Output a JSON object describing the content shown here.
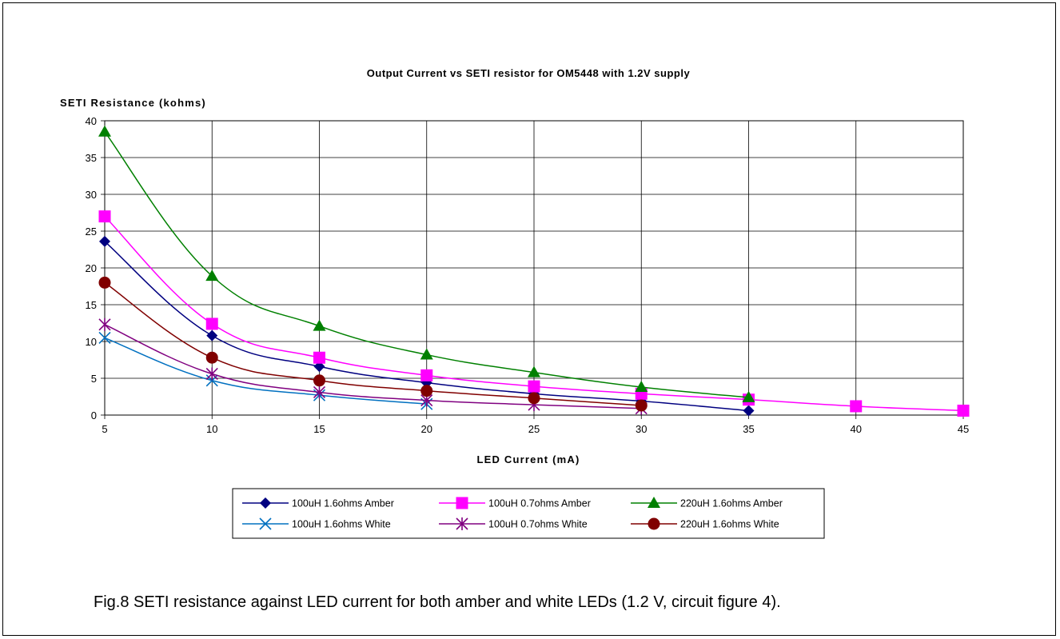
{
  "figure": {
    "caption": "Fig.8  SETI resistance against LED current for both amber and white LEDs (1.2 V, circuit figure 4)."
  },
  "chart_data": {
    "type": "line",
    "title": "Output Current vs SETI resistor for OM5448 with 1.2V supply",
    "xlabel": "LED Current (mA)",
    "ylabel": "SETI Resistance (kohms)",
    "xlim": [
      5,
      45
    ],
    "ylim": [
      0,
      40
    ],
    "xticks": [
      "5",
      "10",
      "15",
      "20",
      "25",
      "30",
      "35",
      "40",
      "45"
    ],
    "yticks": [
      "0",
      "5",
      "10",
      "15",
      "20",
      "25",
      "30",
      "35",
      "40"
    ],
    "grid": true,
    "legend_position": "bottom",
    "series": [
      {
        "name": "100uH 1.6ohms Amber",
        "color": "#000080",
        "marker": "diamond",
        "x": [
          5,
          10,
          15,
          20,
          25,
          30,
          35
        ],
        "y": [
          23.6,
          10.8,
          6.6,
          4.4,
          2.9,
          1.9,
          0.6
        ]
      },
      {
        "name": "100uH 0.7ohms Amber",
        "color": "#ff00ff",
        "marker": "square",
        "x": [
          5,
          10,
          15,
          20,
          25,
          30,
          35,
          40,
          45
        ],
        "y": [
          27.0,
          12.4,
          7.8,
          5.4,
          3.9,
          2.9,
          2.1,
          1.2,
          0.6
        ]
      },
      {
        "name": "220uH 1.6ohms Amber",
        "color": "#008000",
        "marker": "triangle",
        "x": [
          5,
          10,
          15,
          20,
          25,
          30,
          35
        ],
        "y": [
          38.5,
          18.9,
          12.1,
          8.2,
          5.8,
          3.8,
          2.4
        ]
      },
      {
        "name": "100uH 1.6ohms White",
        "color": "#0070c0",
        "marker": "x",
        "x": [
          5,
          10,
          15,
          20
        ],
        "y": [
          10.5,
          4.7,
          2.7,
          1.5
        ]
      },
      {
        "name": "100uH 0.7ohms White",
        "color": "#800080",
        "marker": "star",
        "x": [
          5,
          10,
          15,
          20,
          25,
          30
        ],
        "y": [
          12.3,
          5.6,
          3.1,
          2.0,
          1.4,
          0.9
        ]
      },
      {
        "name": "220uH 1.6ohms White",
        "color": "#800000",
        "marker": "circle",
        "x": [
          5,
          10,
          15,
          20,
          25,
          30
        ],
        "y": [
          18.0,
          7.8,
          4.7,
          3.3,
          2.3,
          1.3
        ]
      }
    ]
  }
}
